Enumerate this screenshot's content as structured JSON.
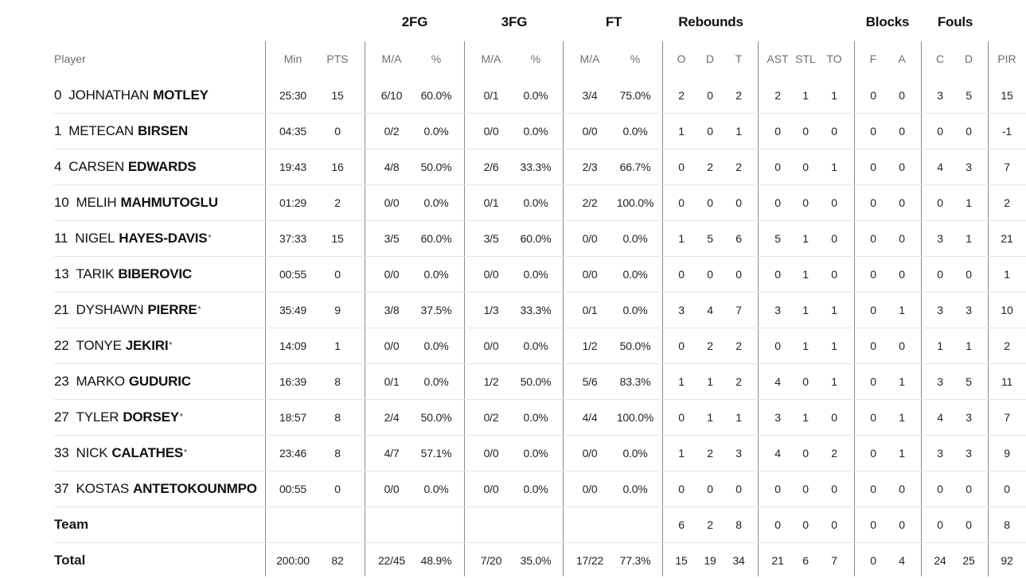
{
  "groups": [
    "2FG",
    "3FG",
    "FT",
    "Rebounds",
    "Blocks",
    "Fouls"
  ],
  "columns": [
    "Player",
    "Min",
    "PTS",
    "M/A",
    "%",
    "M/A",
    "%",
    "M/A",
    "%",
    "O",
    "D",
    "T",
    "AST",
    "STL",
    "TO",
    "F",
    "A",
    "C",
    "D",
    "PIR"
  ],
  "players": [
    {
      "num": "0",
      "first": "JOHNATHAN",
      "last": "MOTLEY",
      "star": "",
      "stats": [
        "25:30",
        "15",
        "6/10",
        "60.0%",
        "0/1",
        "0.0%",
        "3/4",
        "75.0%",
        "2",
        "0",
        "2",
        "2",
        "1",
        "1",
        "0",
        "0",
        "3",
        "5",
        "15"
      ]
    },
    {
      "num": "1",
      "first": "METECAN",
      "last": "BIRSEN",
      "star": "",
      "stats": [
        "04:35",
        "0",
        "0/2",
        "0.0%",
        "0/0",
        "0.0%",
        "0/0",
        "0.0%",
        "1",
        "0",
        "1",
        "0",
        "0",
        "0",
        "0",
        "0",
        "0",
        "0",
        "-1"
      ]
    },
    {
      "num": "4",
      "first": "CARSEN",
      "last": "EDWARDS",
      "star": "",
      "stats": [
        "19:43",
        "16",
        "4/8",
        "50.0%",
        "2/6",
        "33.3%",
        "2/3",
        "66.7%",
        "0",
        "2",
        "2",
        "0",
        "0",
        "1",
        "0",
        "0",
        "4",
        "3",
        "7"
      ]
    },
    {
      "num": "10",
      "first": "MELIH",
      "last": "MAHMUTOGLU",
      "star": "",
      "stats": [
        "01:29",
        "2",
        "0/0",
        "0.0%",
        "0/1",
        "0.0%",
        "2/2",
        "100.0%",
        "0",
        "0",
        "0",
        "0",
        "0",
        "0",
        "0",
        "0",
        "0",
        "1",
        "2"
      ]
    },
    {
      "num": "11",
      "first": "NIGEL",
      "last": "HAYES-DAVIS",
      "star": "*",
      "stats": [
        "37:33",
        "15",
        "3/5",
        "60.0%",
        "3/5",
        "60.0%",
        "0/0",
        "0.0%",
        "1",
        "5",
        "6",
        "5",
        "1",
        "0",
        "0",
        "0",
        "3",
        "1",
        "21"
      ]
    },
    {
      "num": "13",
      "first": "TARIK",
      "last": "BIBEROVIC",
      "star": "",
      "stats": [
        "00:55",
        "0",
        "0/0",
        "0.0%",
        "0/0",
        "0.0%",
        "0/0",
        "0.0%",
        "0",
        "0",
        "0",
        "0",
        "1",
        "0",
        "0",
        "0",
        "0",
        "0",
        "1"
      ]
    },
    {
      "num": "21",
      "first": "DYSHAWN",
      "last": "PIERRE",
      "star": "*",
      "stats": [
        "35:49",
        "9",
        "3/8",
        "37.5%",
        "1/3",
        "33.3%",
        "0/1",
        "0.0%",
        "3",
        "4",
        "7",
        "3",
        "1",
        "1",
        "0",
        "1",
        "3",
        "3",
        "10"
      ]
    },
    {
      "num": "22",
      "first": "TONYE",
      "last": "JEKIRI",
      "star": "*",
      "stats": [
        "14:09",
        "1",
        "0/0",
        "0.0%",
        "0/0",
        "0.0%",
        "1/2",
        "50.0%",
        "0",
        "2",
        "2",
        "0",
        "1",
        "1",
        "0",
        "0",
        "1",
        "1",
        "2"
      ]
    },
    {
      "num": "23",
      "first": "MARKO",
      "last": "GUDURIC",
      "star": "",
      "stats": [
        "16:39",
        "8",
        "0/1",
        "0.0%",
        "1/2",
        "50.0%",
        "5/6",
        "83.3%",
        "1",
        "1",
        "2",
        "4",
        "0",
        "1",
        "0",
        "1",
        "3",
        "5",
        "11"
      ]
    },
    {
      "num": "27",
      "first": "TYLER",
      "last": "DORSEY",
      "star": "*",
      "stats": [
        "18:57",
        "8",
        "2/4",
        "50.0%",
        "0/2",
        "0.0%",
        "4/4",
        "100.0%",
        "0",
        "1",
        "1",
        "3",
        "1",
        "0",
        "0",
        "1",
        "4",
        "3",
        "7"
      ]
    },
    {
      "num": "33",
      "first": "NICK",
      "last": "CALATHES",
      "star": "*",
      "stats": [
        "23:46",
        "8",
        "4/7",
        "57.1%",
        "0/0",
        "0.0%",
        "0/0",
        "0.0%",
        "1",
        "2",
        "3",
        "4",
        "0",
        "2",
        "0",
        "1",
        "3",
        "3",
        "9"
      ]
    },
    {
      "num": "37",
      "first": "KOSTAS",
      "last": "ANTETOKOUNMPO",
      "star": "",
      "stats": [
        "00:55",
        "0",
        "0/0",
        "0.0%",
        "0/0",
        "0.0%",
        "0/0",
        "0.0%",
        "0",
        "0",
        "0",
        "0",
        "0",
        "0",
        "0",
        "0",
        "0",
        "0",
        "0"
      ]
    }
  ],
  "team": {
    "label": "Team",
    "stats": [
      "",
      "",
      "",
      "",
      "",
      "",
      "",
      "",
      "6",
      "2",
      "8",
      "0",
      "0",
      "0",
      "0",
      "0",
      "0",
      "0",
      "8"
    ]
  },
  "total": {
    "label": "Total",
    "stats": [
      "200:00",
      "82",
      "22/45",
      "48.9%",
      "7/20",
      "35.0%",
      "17/22",
      "77.3%",
      "15",
      "19",
      "34",
      "21",
      "6",
      "7",
      "0",
      "4",
      "24",
      "25",
      "92"
    ]
  },
  "colors": {
    "divider": "#8a8a8a",
    "row_rule": "#e4e4e4",
    "header_text": "#6e6e6e",
    "text": "#111111"
  }
}
